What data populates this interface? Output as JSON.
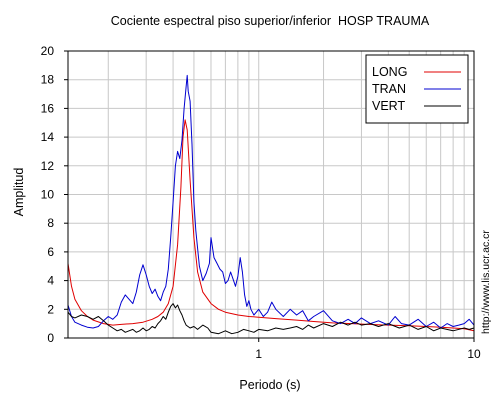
{
  "chart_data": {
    "type": "line",
    "title": "Cociente espectral piso superior/inferior  HOSP TRAUMA",
    "xlabel": "Periodo (s)",
    "ylabel": "Amplitud",
    "xscale": "log",
    "xlim": [
      0.13,
      10
    ],
    "ylim": [
      0,
      20
    ],
    "x_ticks": [
      1,
      10
    ],
    "x_tick_labels": [
      "1",
      "10"
    ],
    "y_ticks": [
      0,
      2,
      4,
      6,
      8,
      10,
      12,
      14,
      16,
      18,
      20
    ],
    "y_tick_labels": [
      "0",
      "2",
      "4",
      "6",
      "8",
      "10",
      "12",
      "14",
      "16",
      "18",
      "20"
    ],
    "grid": true,
    "legend_position": "top-right",
    "watermark": "http://www.lis.ucr.ac.cr",
    "series": [
      {
        "name": "LONG",
        "color": "#e00000",
        "points": [
          [
            0.13,
            5.2
          ],
          [
            0.135,
            3.6
          ],
          [
            0.14,
            2.7
          ],
          [
            0.15,
            1.9
          ],
          [
            0.16,
            1.5
          ],
          [
            0.17,
            1.25
          ],
          [
            0.19,
            1.0
          ],
          [
            0.21,
            0.9
          ],
          [
            0.23,
            0.95
          ],
          [
            0.26,
            1.0
          ],
          [
            0.29,
            1.1
          ],
          [
            0.32,
            1.3
          ],
          [
            0.34,
            1.5
          ],
          [
            0.36,
            1.8
          ],
          [
            0.38,
            2.4
          ],
          [
            0.4,
            3.6
          ],
          [
            0.42,
            6.5
          ],
          [
            0.435,
            10.5
          ],
          [
            0.445,
            14.0
          ],
          [
            0.455,
            15.2
          ],
          [
            0.465,
            14.5
          ],
          [
            0.48,
            11.0
          ],
          [
            0.5,
            7.0
          ],
          [
            0.52,
            4.6
          ],
          [
            0.55,
            3.2
          ],
          [
            0.6,
            2.4
          ],
          [
            0.65,
            2.0
          ],
          [
            0.7,
            1.8
          ],
          [
            0.8,
            1.6
          ],
          [
            0.9,
            1.5
          ],
          [
            1.0,
            1.45
          ],
          [
            1.2,
            1.35
          ],
          [
            1.5,
            1.25
          ],
          [
            1.8,
            1.15
          ],
          [
            2.2,
            1.05
          ],
          [
            2.7,
            1.0
          ],
          [
            3.2,
            0.95
          ],
          [
            4.0,
            0.9
          ],
          [
            5.0,
            0.85
          ],
          [
            6.0,
            0.8
          ],
          [
            7.0,
            0.75
          ],
          [
            8.0,
            0.7
          ],
          [
            9.0,
            0.65
          ],
          [
            10.0,
            0.5
          ]
        ]
      },
      {
        "name": "TRAN",
        "color": "#0000d0",
        "points": [
          [
            0.13,
            2.3
          ],
          [
            0.135,
            1.5
          ],
          [
            0.14,
            1.1
          ],
          [
            0.15,
            0.9
          ],
          [
            0.16,
            0.75
          ],
          [
            0.17,
            0.7
          ],
          [
            0.18,
            0.8
          ],
          [
            0.19,
            1.2
          ],
          [
            0.2,
            1.5
          ],
          [
            0.21,
            1.3
          ],
          [
            0.22,
            1.6
          ],
          [
            0.23,
            2.5
          ],
          [
            0.24,
            3.0
          ],
          [
            0.25,
            2.7
          ],
          [
            0.26,
            2.4
          ],
          [
            0.27,
            3.2
          ],
          [
            0.28,
            4.4
          ],
          [
            0.29,
            5.1
          ],
          [
            0.3,
            4.4
          ],
          [
            0.31,
            3.6
          ],
          [
            0.32,
            3.1
          ],
          [
            0.33,
            3.4
          ],
          [
            0.34,
            2.9
          ],
          [
            0.35,
            2.6
          ],
          [
            0.36,
            3.2
          ],
          [
            0.37,
            3.6
          ],
          [
            0.38,
            4.8
          ],
          [
            0.39,
            7.0
          ],
          [
            0.4,
            9.5
          ],
          [
            0.41,
            12.0
          ],
          [
            0.42,
            13.0
          ],
          [
            0.43,
            12.5
          ],
          [
            0.44,
            13.8
          ],
          [
            0.45,
            16.0
          ],
          [
            0.46,
            17.5
          ],
          [
            0.465,
            18.3
          ],
          [
            0.47,
            17.2
          ],
          [
            0.48,
            16.5
          ],
          [
            0.49,
            13.5
          ],
          [
            0.5,
            9.5
          ],
          [
            0.51,
            7.5
          ],
          [
            0.53,
            5.0
          ],
          [
            0.55,
            4.0
          ],
          [
            0.57,
            4.5
          ],
          [
            0.59,
            5.2
          ],
          [
            0.6,
            7.0
          ],
          [
            0.62,
            5.6
          ],
          [
            0.64,
            5.2
          ],
          [
            0.66,
            4.8
          ],
          [
            0.68,
            4.6
          ],
          [
            0.7,
            3.8
          ],
          [
            0.72,
            4.0
          ],
          [
            0.74,
            4.6
          ],
          [
            0.76,
            4.1
          ],
          [
            0.78,
            3.6
          ],
          [
            0.8,
            4.3
          ],
          [
            0.82,
            5.6
          ],
          [
            0.84,
            4.6
          ],
          [
            0.86,
            3.0
          ],
          [
            0.88,
            2.2
          ],
          [
            0.9,
            2.6
          ],
          [
            0.92,
            2.0
          ],
          [
            0.95,
            1.6
          ],
          [
            1.0,
            2.0
          ],
          [
            1.05,
            1.5
          ],
          [
            1.1,
            1.8
          ],
          [
            1.15,
            2.5
          ],
          [
            1.2,
            2.0
          ],
          [
            1.3,
            1.5
          ],
          [
            1.4,
            2.0
          ],
          [
            1.5,
            1.6
          ],
          [
            1.6,
            1.9
          ],
          [
            1.7,
            1.2
          ],
          [
            1.8,
            1.5
          ],
          [
            2.0,
            1.9
          ],
          [
            2.2,
            1.2
          ],
          [
            2.4,
            1.0
          ],
          [
            2.6,
            1.3
          ],
          [
            2.8,
            1.0
          ],
          [
            3.0,
            1.4
          ],
          [
            3.3,
            1.0
          ],
          [
            3.6,
            1.2
          ],
          [
            4.0,
            0.9
          ],
          [
            4.3,
            1.5
          ],
          [
            4.6,
            1.0
          ],
          [
            5.0,
            0.9
          ],
          [
            5.5,
            1.3
          ],
          [
            6.0,
            0.8
          ],
          [
            6.5,
            1.1
          ],
          [
            7.0,
            0.7
          ],
          [
            7.5,
            1.0
          ],
          [
            8.0,
            0.8
          ],
          [
            8.5,
            0.9
          ],
          [
            9.0,
            1.0
          ],
          [
            9.5,
            1.3
          ],
          [
            10.0,
            0.9
          ]
        ]
      },
      {
        "name": "VERT",
        "color": "#000000",
        "points": [
          [
            0.13,
            1.8
          ],
          [
            0.135,
            1.5
          ],
          [
            0.14,
            1.4
          ],
          [
            0.15,
            1.6
          ],
          [
            0.16,
            1.5
          ],
          [
            0.17,
            1.3
          ],
          [
            0.18,
            1.5
          ],
          [
            0.19,
            1.2
          ],
          [
            0.2,
            0.9
          ],
          [
            0.21,
            0.7
          ],
          [
            0.22,
            0.5
          ],
          [
            0.23,
            0.6
          ],
          [
            0.24,
            0.4
          ],
          [
            0.25,
            0.5
          ],
          [
            0.26,
            0.6
          ],
          [
            0.27,
            0.4
          ],
          [
            0.28,
            0.5
          ],
          [
            0.29,
            0.7
          ],
          [
            0.3,
            0.5
          ],
          [
            0.31,
            0.6
          ],
          [
            0.32,
            0.8
          ],
          [
            0.33,
            0.7
          ],
          [
            0.34,
            1.0
          ],
          [
            0.35,
            1.2
          ],
          [
            0.36,
            1.5
          ],
          [
            0.37,
            1.3
          ],
          [
            0.38,
            1.8
          ],
          [
            0.39,
            2.2
          ],
          [
            0.4,
            2.4
          ],
          [
            0.41,
            2.1
          ],
          [
            0.42,
            2.3
          ],
          [
            0.43,
            1.9
          ],
          [
            0.44,
            1.6
          ],
          [
            0.45,
            1.2
          ],
          [
            0.46,
            0.9
          ],
          [
            0.48,
            0.7
          ],
          [
            0.5,
            0.8
          ],
          [
            0.52,
            0.6
          ],
          [
            0.55,
            0.9
          ],
          [
            0.58,
            0.7
          ],
          [
            0.6,
            0.4
          ],
          [
            0.65,
            0.3
          ],
          [
            0.7,
            0.5
          ],
          [
            0.75,
            0.3
          ],
          [
            0.8,
            0.4
          ],
          [
            0.85,
            0.6
          ],
          [
            0.9,
            0.5
          ],
          [
            0.95,
            0.4
          ],
          [
            1.0,
            0.6
          ],
          [
            1.1,
            0.5
          ],
          [
            1.2,
            0.7
          ],
          [
            1.3,
            0.6
          ],
          [
            1.4,
            0.7
          ],
          [
            1.5,
            0.8
          ],
          [
            1.6,
            0.6
          ],
          [
            1.7,
            0.9
          ],
          [
            1.8,
            0.7
          ],
          [
            2.0,
            1.0
          ],
          [
            2.2,
            0.8
          ],
          [
            2.4,
            1.1
          ],
          [
            2.6,
            0.9
          ],
          [
            2.8,
            1.1
          ],
          [
            3.0,
            0.9
          ],
          [
            3.3,
            1.0
          ],
          [
            3.6,
            0.8
          ],
          [
            4.0,
            1.0
          ],
          [
            4.5,
            0.7
          ],
          [
            5.0,
            0.9
          ],
          [
            5.5,
            0.6
          ],
          [
            6.0,
            0.8
          ],
          [
            6.5,
            0.5
          ],
          [
            7.0,
            0.7
          ],
          [
            8.0,
            0.5
          ],
          [
            9.0,
            0.7
          ],
          [
            9.5,
            0.6
          ],
          [
            10.0,
            0.7
          ]
        ]
      }
    ]
  }
}
